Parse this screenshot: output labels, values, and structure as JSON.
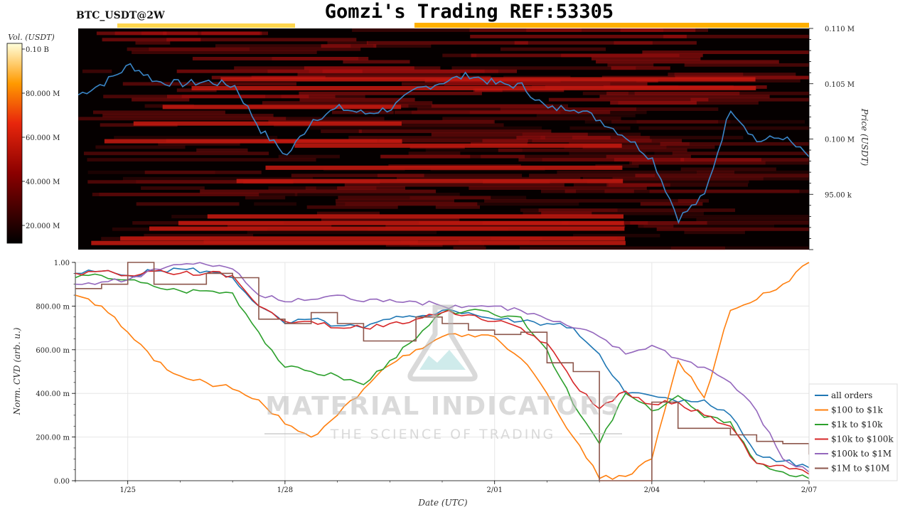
{
  "header": {
    "symbol": "BTC_USDT@2W",
    "title": "Gomzi's Trading REF:53305"
  },
  "watermark": {
    "name": "MATERIAL INDICATORS",
    "tagline": "THE SCIENCE OF TRADING"
  },
  "colorbar": {
    "label": "Vol. (USDT)",
    "ticks": [
      "0.10 B",
      "80.000 M",
      "60.000 M",
      "40.000 M",
      "20.000 M"
    ]
  },
  "colors": {
    "price_line": "#3a86c8",
    "heatmap_bg": "#050000",
    "all_orders": "#1f77b4",
    "s100_1k": "#ff7f0e",
    "s1k_10k": "#2ca02c",
    "s10k_100k": "#d62728",
    "s100k_1m": "#9467bd",
    "s1m_10m": "#8c564b"
  },
  "chart_data": [
    {
      "type": "heatmap",
      "title": "Gomzi's Trading REF:53305",
      "ylabel": "Price (USDT)",
      "y_ticks": [
        "0.110 M",
        "0.105 M",
        "0.100 M",
        "95.00 k"
      ],
      "y_tick_values": [
        110000,
        105000,
        100000,
        95000
      ],
      "ylim": [
        90000,
        110000
      ],
      "colorbar_range": [
        0,
        100000000
      ],
      "price_series": {
        "name": "price",
        "x": [
          0,
          0.5,
          1,
          1.5,
          2,
          2.5,
          3,
          3.5,
          4,
          4.5,
          5,
          5.5,
          6,
          6.5,
          7,
          7.5,
          8,
          8.5,
          9,
          9.5,
          10,
          10.5,
          11,
          11.5,
          12,
          12.5,
          13,
          13.5,
          14
        ],
        "y": [
          104000,
          105100,
          106700,
          105200,
          105000,
          105200,
          104800,
          100800,
          98500,
          101800,
          102800,
          102300,
          102800,
          104500,
          105200,
          105800,
          105000,
          104800,
          102700,
          102900,
          101700,
          100200,
          98200,
          92800,
          94900,
          102800,
          99800,
          100200,
          98400
        ]
      },
      "liquidity_bands": [
        105400,
        104600,
        102900,
        101400,
        99800,
        99400,
        97400,
        96200,
        93000,
        92400,
        91900,
        91000,
        90600
      ]
    },
    {
      "type": "line",
      "xlabel": "Date (UTC)",
      "ylabel": "Norm. CVD (arb. u.)",
      "x_ticks": [
        "1/25",
        "1/28",
        "2/01",
        "2/04",
        "2/07"
      ],
      "x_tick_values": [
        0,
        3,
        7,
        10,
        13
      ],
      "xlim": [
        -1,
        13
      ],
      "y_ticks": [
        "1.00",
        "800.00 m",
        "600.00 m",
        "400.00 m",
        "200.00 m",
        "0.00"
      ],
      "y_tick_values": [
        1.0,
        0.8,
        0.6,
        0.4,
        0.2,
        0.0
      ],
      "ylim": [
        0,
        1
      ],
      "grid": true,
      "legend_position": "bottom-right",
      "x": [
        -1,
        -0.5,
        0,
        0.5,
        1,
        1.5,
        2,
        2.5,
        3,
        3.5,
        4,
        4.5,
        5,
        5.5,
        6,
        6.5,
        7,
        7.5,
        8,
        8.5,
        9,
        9.5,
        10,
        10.5,
        11,
        11.5,
        12,
        12.5,
        13
      ],
      "series": [
        {
          "name": "all orders",
          "color_key": "all_orders",
          "values": [
            0.95,
            0.96,
            0.94,
            0.96,
            0.97,
            0.96,
            0.93,
            0.8,
            0.72,
            0.74,
            0.71,
            0.7,
            0.74,
            0.75,
            0.78,
            0.77,
            0.74,
            0.73,
            0.72,
            0.7,
            0.58,
            0.4,
            0.39,
            0.36,
            0.37,
            0.3,
            0.12,
            0.09,
            0.06
          ]
        },
        {
          "name": "$100 to $1k",
          "color_key": "s100_1k",
          "values": [
            0.85,
            0.8,
            0.68,
            0.55,
            0.48,
            0.45,
            0.42,
            0.37,
            0.26,
            0.2,
            0.3,
            0.42,
            0.53,
            0.6,
            0.66,
            0.67,
            0.66,
            0.56,
            0.4,
            0.2,
            0.01,
            0.02,
            0.1,
            0.55,
            0.38,
            0.78,
            0.83,
            0.9,
            1.0
          ]
        },
        {
          "name": "$1k to $10k",
          "color_key": "s1k_10k",
          "values": [
            0.93,
            0.94,
            0.92,
            0.89,
            0.87,
            0.87,
            0.86,
            0.68,
            0.52,
            0.5,
            0.48,
            0.44,
            0.55,
            0.65,
            0.77,
            0.78,
            0.76,
            0.75,
            0.6,
            0.35,
            0.17,
            0.4,
            0.32,
            0.39,
            0.29,
            0.27,
            0.08,
            0.04,
            0.01
          ]
        },
        {
          "name": "$10k to $100k",
          "color_key": "s10k_100k",
          "values": [
            0.95,
            0.96,
            0.94,
            0.96,
            0.95,
            0.95,
            0.94,
            0.8,
            0.73,
            0.73,
            0.7,
            0.7,
            0.72,
            0.74,
            0.77,
            0.76,
            0.73,
            0.7,
            0.63,
            0.45,
            0.33,
            0.41,
            0.35,
            0.36,
            0.3,
            0.25,
            0.08,
            0.07,
            0.03
          ]
        },
        {
          "name": "$100k to $1M",
          "color_key": "s100k_1m",
          "values": [
            0.9,
            0.91,
            0.92,
            0.97,
            0.99,
            0.99,
            0.97,
            0.85,
            0.82,
            0.83,
            0.85,
            0.82,
            0.83,
            0.82,
            0.8,
            0.8,
            0.8,
            0.78,
            0.74,
            0.7,
            0.66,
            0.58,
            0.62,
            0.56,
            0.52,
            0.45,
            0.32,
            0.1,
            0.04
          ]
        },
        {
          "name": "$1M to $10M",
          "color_key": "s1m_10m",
          "values": [
            0.88,
            0.9,
            1.0,
            0.9,
            0.9,
            0.95,
            0.93,
            0.74,
            0.72,
            0.77,
            0.72,
            0.64,
            0.64,
            0.75,
            0.72,
            0.69,
            0.67,
            0.68,
            0.54,
            0.5,
            0.0,
            0.0,
            0.36,
            0.24,
            0.24,
            0.21,
            0.18,
            0.17,
            0.12
          ]
        }
      ]
    }
  ]
}
